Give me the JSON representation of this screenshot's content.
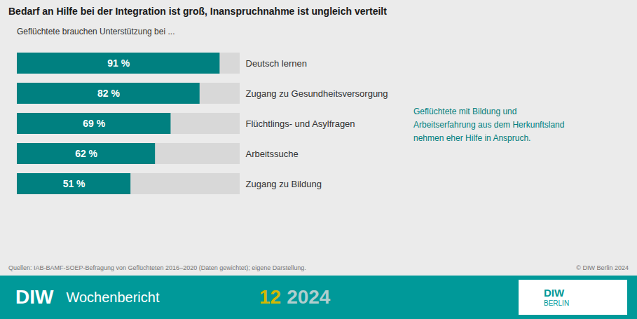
{
  "chart_data": {
    "type": "bar",
    "orientation": "horizontal",
    "title": "Bedarf an Hilfe bei der Integration ist groß, Inanspruchnahme ist ungleich verteilt",
    "subtitle": "Geflüchtete brauchen Unterstützung bei ...",
    "categories": [
      "Deutsch lernen",
      "Zugang zu Gesundheitsversorgung",
      "Flüchtlings- und Asylfragen",
      "Arbeitssuche",
      "Zugang zu Bildung"
    ],
    "values": [
      91,
      82,
      69,
      62,
      51
    ],
    "value_labels": [
      "91 %",
      "82 %",
      "69 %",
      "62 %",
      "51 %"
    ],
    "data_labels": true,
    "color": "#008080",
    "xlim": [
      0,
      100
    ],
    "tick_labels": false,
    "grid": false,
    "annotations": [
      "Geflüchtete mit Bildung und\nArbeitserfahrung aus dem Herkunftsland\nnehmen eher Hilfe in Anspruch."
    ],
    "source": "Quellen: IAB-BAMF-SOEP-Befragung von Geflüchteten 2016–2020 (Daten gewichtet); eigene Darstellung.",
    "copyright": "© DIW Berlin 2024",
    "footer": [
      "DIW",
      "Wochenbericht",
      "12",
      "2024"
    ],
    "logo": [
      "DIW",
      "BERLIN"
    ]
  }
}
